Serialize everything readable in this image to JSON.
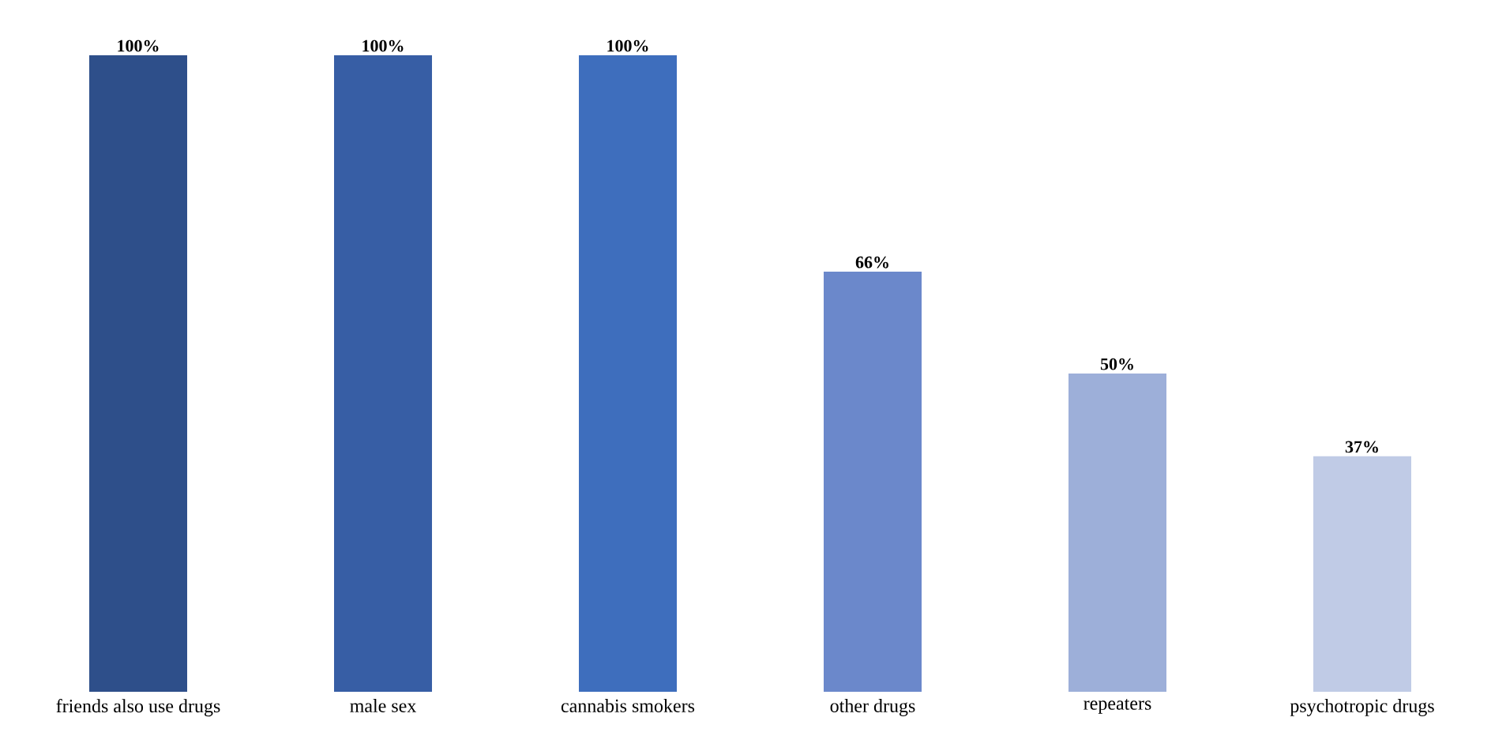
{
  "chart_data": {
    "type": "bar",
    "categories": [
      "friends also use drugs",
      "male sex",
      "cannabis smokers",
      "other drugs",
      "repeaters",
      "psychotropic drugs"
    ],
    "values": [
      100,
      100,
      100,
      66,
      50,
      37
    ],
    "colors": [
      "#2e4f8a",
      "#375ea5",
      "#3e6ebd",
      "#6b88cb",
      "#9dafd9",
      "#c0cbe6"
    ],
    "value_labels": [
      "100%",
      "100%",
      "100%",
      "66%",
      "50%",
      "37%"
    ]
  }
}
